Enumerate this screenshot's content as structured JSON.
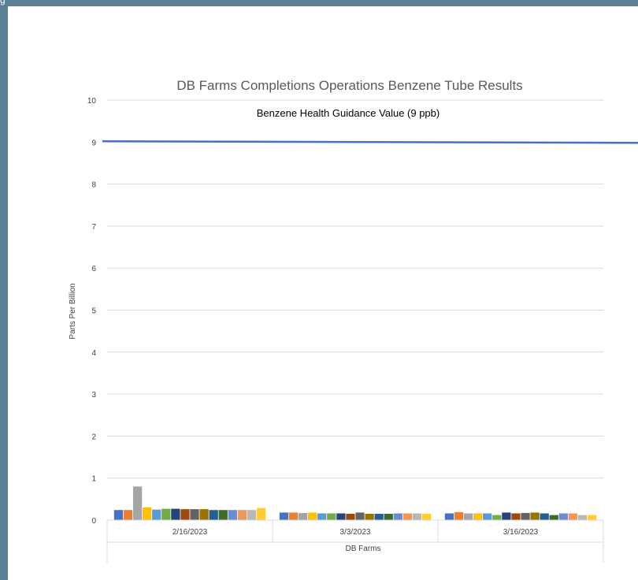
{
  "window": {
    "top_edge_glyph": "g"
  },
  "chart_data": {
    "type": "bar",
    "title": "DB Farms Completions Operations Benzene Tube Results",
    "xlabel": "DB Farms",
    "ylabel": "Parts Per Billion",
    "ylim": [
      0,
      10
    ],
    "yticks": [
      "0",
      "1",
      "2",
      "3",
      "4",
      "5",
      "6",
      "7",
      "8",
      "9",
      "10"
    ],
    "grid": true,
    "legend": "none",
    "categories": [
      "2/16/2023",
      "3/3/2023",
      "3/16/2023"
    ],
    "series_colors": [
      "#4472c4",
      "#ed7d31",
      "#a5a5a5",
      "#ffc000",
      "#5b9bd5",
      "#70ad47",
      "#264478",
      "#9e480e",
      "#636363",
      "#997300",
      "#255e91",
      "#43682b",
      "#698ed0",
      "#f1975a",
      "#b7b7b7",
      "#ffcd33"
    ],
    "values": [
      [
        0.24,
        0.24,
        0.8,
        0.3,
        0.25,
        0.27,
        0.27,
        0.26,
        0.26,
        0.26,
        0.24,
        0.24,
        0.24,
        0.24,
        0.24,
        0.29
      ],
      [
        0.18,
        0.18,
        0.17,
        0.18,
        0.16,
        0.16,
        0.16,
        0.15,
        0.18,
        0.15,
        0.15,
        0.15,
        0.16,
        0.16,
        0.16,
        0.15
      ],
      [
        0.16,
        0.19,
        0.16,
        0.16,
        0.16,
        0.12,
        0.18,
        0.16,
        0.17,
        0.18,
        0.16,
        0.12,
        0.16,
        0.16,
        0.12,
        0.12
      ]
    ],
    "reference_line": {
      "value": 9,
      "label": "Benzene Health Guidance Value (9 ppb)",
      "color": "#4472c4"
    }
  }
}
